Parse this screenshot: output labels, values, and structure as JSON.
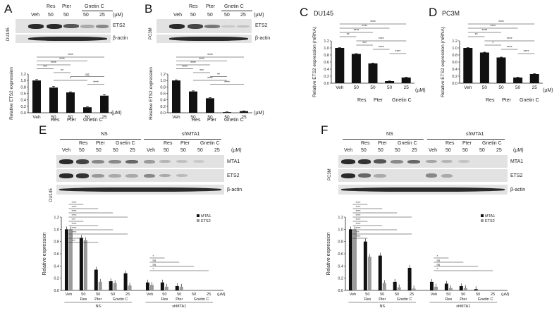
{
  "panels": {
    "A": {
      "letter": "A",
      "cell_line": "DU145",
      "header_treatments": [
        "Veh",
        "Res",
        "Pter",
        "Gnetin C"
      ],
      "header_concs": [
        "50",
        "50",
        "50",
        "25"
      ],
      "unit": "(µM)",
      "blot_labels": [
        "ETS2",
        "β-actin"
      ],
      "x_treatments": [
        "Res",
        "Pter",
        "Gnetin C"
      ]
    },
    "B": {
      "letter": "B",
      "cell_line": "PC3M",
      "header_treatments": [
        "Veh",
        "Res",
        "Pter",
        "Gnetin C"
      ],
      "header_concs": [
        "50",
        "50",
        "50",
        "25"
      ],
      "unit": "(µM)",
      "blot_labels": [
        "ETS2",
        "β-actin"
      ],
      "x_treatments": [
        "Res",
        "Pter",
        "Gnetin C"
      ]
    },
    "C": {
      "letter": "C",
      "title": "DU145",
      "unit": "(µM)",
      "x_treatments": [
        "Res",
        "Pter",
        "Gnetin C"
      ]
    },
    "D": {
      "letter": "D",
      "title": "PC3M",
      "unit": "(µM)",
      "x_treatments": [
        "Res",
        "Pter",
        "Gnetin C"
      ]
    },
    "E": {
      "letter": "E",
      "cell_line": "DU145",
      "groups": [
        "NS",
        "shMTA1"
      ],
      "header_treatments": [
        "Veh",
        "Res",
        "Pter",
        "Gnetin C"
      ],
      "header_concs": [
        "50",
        "50",
        "50",
        "25"
      ],
      "unit": "(µM)",
      "blot_labels": [
        "MTA1",
        "ETS2",
        "β-actin"
      ]
    },
    "F": {
      "letter": "F",
      "cell_line": "PC3M",
      "groups": [
        "NS",
        "shMTA1"
      ],
      "header_treatments": [
        "Veh",
        "Res",
        "Pter",
        "Gnetin C"
      ],
      "header_concs": [
        "50",
        "50",
        "50",
        "25"
      ],
      "unit": "(µM)",
      "blot_labels": [
        "MTA1",
        "ETS2",
        "β-actin"
      ]
    }
  },
  "chart_data": [
    {
      "id": "A",
      "type": "bar",
      "ylabel": "Relative ETS2 expression",
      "categories": [
        "Veh",
        "50",
        "50",
        "50",
        "25"
      ],
      "values": [
        1.0,
        0.78,
        0.63,
        0.17,
        0.53
      ],
      "errors": [
        0.03,
        0.04,
        0.02,
        0.02,
        0.03
      ],
      "ylim": [
        0,
        1.2
      ],
      "yticks": [
        "0.0",
        "0.2",
        "0.4",
        "0.6",
        "0.8",
        "1.0",
        "1.2"
      ],
      "significance": [
        "****",
        "****",
        "****",
        "***",
        "**",
        "ns",
        "*",
        "****"
      ]
    },
    {
      "id": "B",
      "type": "bar",
      "ylabel": "Relative ETS2 expression",
      "categories": [
        "Veh",
        "50",
        "50",
        "50",
        "25"
      ],
      "values": [
        1.0,
        0.66,
        0.45,
        0.02,
        0.05
      ],
      "errors": [
        0.02,
        0.02,
        0.02,
        0.01,
        0.01
      ],
      "ylim": [
        0,
        1.2
      ],
      "yticks": [
        "0.0",
        "0.2",
        "0.4",
        "0.6",
        "0.8",
        "1.0",
        "1.2"
      ],
      "significance": [
        "****",
        "****",
        "****",
        "****",
        "***",
        "**",
        "****",
        "****"
      ]
    },
    {
      "id": "C",
      "type": "bar",
      "ylabel": "Relative ETS2 expression (mRNA)",
      "categories": [
        "Veh",
        "50",
        "50",
        "50",
        "25"
      ],
      "values": [
        1.0,
        0.83,
        0.56,
        0.06,
        0.16
      ],
      "errors": [
        0.01,
        0.01,
        0.01,
        0.005,
        0.01
      ],
      "ylim": [
        0,
        1.2
      ],
      "yticks": [
        "0.0",
        "0.2",
        "0.4",
        "0.6",
        "0.8",
        "1.0",
        "1.2"
      ],
      "significance": [
        "****",
        "****",
        "****",
        "**",
        "****",
        "***",
        "****",
        "****"
      ]
    },
    {
      "id": "D",
      "type": "bar",
      "ylabel": "Relative ETS2 expression (mRNA)",
      "categories": [
        "Veh",
        "50",
        "50",
        "50",
        "25"
      ],
      "values": [
        1.0,
        0.87,
        0.73,
        0.16,
        0.26
      ],
      "errors": [
        0.01,
        0.01,
        0.01,
        0.01,
        0.01
      ],
      "ylim": [
        0,
        1.2
      ],
      "yticks": [
        "0.0",
        "0.2",
        "0.4",
        "0.6",
        "0.8",
        "1.0",
        "1.2"
      ],
      "significance": [
        "****",
        "****",
        "****",
        "**",
        "****",
        "*",
        "****",
        "****"
      ]
    },
    {
      "id": "E",
      "type": "bar",
      "ylabel": "Relative expression",
      "categories": [
        "Veh",
        "50",
        "50",
        "50",
        "25",
        "Veh",
        "50",
        "50",
        "50",
        "25"
      ],
      "series": [
        {
          "name": "MTA1",
          "color": "#111111",
          "values": [
            1.0,
            0.86,
            0.34,
            0.15,
            0.28,
            0.13,
            0.13,
            0.07,
            0.0,
            0.0
          ]
        },
        {
          "name": "ETS2",
          "color": "#9a9a9a",
          "values": [
            1.0,
            0.82,
            0.14,
            0.12,
            0.08,
            0.09,
            0.06,
            0.06,
            0.0,
            0.0
          ]
        }
      ],
      "ylim": [
        0,
        1.2
      ],
      "yticks": [
        "0.0",
        "0.2",
        "0.4",
        "0.6",
        "0.8",
        "1.0",
        "1.2"
      ],
      "significance": [
        "****",
        "****",
        "****",
        "****",
        "***",
        "****",
        "****",
        "****",
        "*",
        "***",
        "*",
        "ns",
        "ns",
        "*"
      ]
    },
    {
      "id": "F",
      "type": "bar",
      "ylabel": "Relative expression",
      "categories": [
        "Veh",
        "50",
        "50",
        "50",
        "25",
        "Veh",
        "50",
        "50",
        "50",
        "25"
      ],
      "series": [
        {
          "name": "MTA1",
          "color": "#111111",
          "values": [
            1.0,
            0.8,
            0.57,
            0.14,
            0.37,
            0.14,
            0.11,
            0.07,
            0.02,
            0.0
          ]
        },
        {
          "name": "ETS2",
          "color": "#9a9a9a",
          "values": [
            1.0,
            0.55,
            0.12,
            0.05,
            0.03,
            0.06,
            0.04,
            0.04,
            0.0,
            0.0
          ]
        }
      ],
      "ylim": [
        0,
        1.2
      ],
      "yticks": [
        "0.0",
        "0.2",
        "0.4",
        "0.6",
        "0.8",
        "1.0",
        "1.2"
      ],
      "significance": [
        "****",
        "****",
        "****",
        "****",
        "****",
        "****",
        "****",
        "***",
        "****",
        "*",
        "ns",
        "ns",
        "*"
      ]
    }
  ]
}
